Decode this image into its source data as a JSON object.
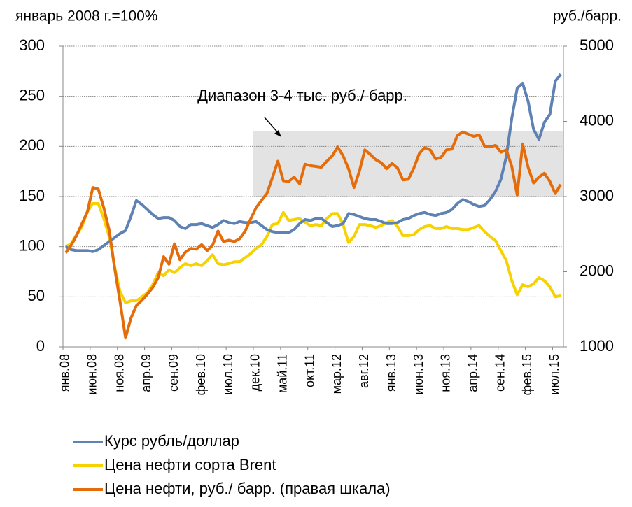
{
  "chart_data": {
    "type": "line",
    "y_label": "январь 2008 г.=100%",
    "y2_label": "руб./барр.",
    "annotation": "Диапазон 3-4 тыс. руб./ барр.",
    "band": {
      "from": "дек.10",
      "y2": [
        3000,
        3870
      ],
      "color": "#e3e3e3"
    },
    "categories": [
      "янв.08",
      null,
      null,
      null,
      null,
      "июн.08",
      null,
      null,
      null,
      null,
      "ноя.08",
      null,
      null,
      null,
      null,
      "апр.09",
      null,
      null,
      null,
      null,
      "сен.09",
      null,
      null,
      null,
      null,
      "фев.10",
      null,
      null,
      null,
      null,
      "июл.10",
      null,
      null,
      null,
      null,
      "дек.10",
      null,
      null,
      null,
      null,
      "май.11",
      null,
      null,
      null,
      null,
      "окт.11",
      null,
      null,
      null,
      null,
      "мар.12",
      null,
      null,
      null,
      null,
      "авг.12",
      null,
      null,
      null,
      null,
      "янв.13",
      null,
      null,
      null,
      null,
      "июн.13",
      null,
      null,
      null,
      null,
      "ноя.13",
      null,
      null,
      null,
      null,
      "апр.14",
      null,
      null,
      null,
      null,
      "сен.14",
      null,
      null,
      null,
      null,
      "фев.15",
      null,
      null,
      null,
      null,
      "июл.15",
      null
    ],
    "series": [
      {
        "name": "Курс рубль/доллар",
        "color": "#5f82b4",
        "values": [
          100,
          97,
          96,
          96,
          96,
          95,
          97,
          101,
          105,
          109,
          113,
          116,
          130,
          146,
          142,
          137,
          132,
          128,
          129,
          129,
          126,
          120,
          118,
          122,
          122,
          123,
          121,
          119,
          122,
          126,
          124,
          123,
          125,
          124,
          124,
          125,
          121,
          117,
          115,
          114,
          114,
          114,
          117,
          123,
          127,
          126,
          128,
          128,
          124,
          120,
          121,
          123,
          133,
          132,
          130,
          128,
          127,
          127,
          125,
          123,
          123,
          124,
          127,
          128,
          131,
          133,
          134,
          132,
          131,
          133,
          134,
          137,
          143,
          147,
          145,
          142,
          140,
          141,
          147,
          155,
          167,
          190,
          228,
          258,
          263,
          245,
          217,
          207,
          224,
          232,
          265,
          272
        ]
      },
      {
        "name": "Цена нефти сорта Brent",
        "color": "#f5d200",
        "values": [
          100,
          103,
          112,
          120,
          135,
          143,
          143,
          128,
          110,
          80,
          55,
          44,
          46,
          46,
          50,
          54,
          62,
          74,
          71,
          77,
          74,
          79,
          83,
          81,
          83,
          81,
          86,
          92,
          83,
          82,
          83,
          85,
          85,
          89,
          93,
          98,
          102,
          110,
          122,
          123,
          134,
          126,
          127,
          128,
          124,
          121,
          122,
          121,
          128,
          133,
          133,
          122,
          104,
          110,
          122,
          122,
          121,
          119,
          121,
          124,
          126,
          120,
          111,
          111,
          112,
          117,
          120,
          121,
          118,
          118,
          120,
          118,
          118,
          117,
          117,
          119,
          121,
          115,
          110,
          106,
          96,
          86,
          66,
          52,
          62,
          60,
          63,
          69,
          66,
          60,
          50,
          51
        ]
      },
      {
        "name": "Цена нефти, руб./ барр. (правая шкала)",
        "color": "#e46c0a",
        "axis": "y2",
        "values": [
          2250,
          2350,
          2480,
          2640,
          2800,
          3120,
          3100,
          2850,
          2550,
          2050,
          1600,
          1120,
          1380,
          1550,
          1620,
          1700,
          1790,
          1920,
          2200,
          2100,
          2370,
          2160,
          2260,
          2310,
          2300,
          2360,
          2280,
          2350,
          2540,
          2400,
          2420,
          2400,
          2440,
          2540,
          2700,
          2850,
          2950,
          3040,
          3250,
          3470,
          3210,
          3200,
          3260,
          3170,
          3430,
          3410,
          3400,
          3390,
          3470,
          3540,
          3660,
          3540,
          3370,
          3120,
          3340,
          3620,
          3560,
          3490,
          3450,
          3370,
          3440,
          3380,
          3220,
          3230,
          3380,
          3570,
          3650,
          3620,
          3500,
          3520,
          3620,
          3630,
          3810,
          3860,
          3830,
          3800,
          3820,
          3670,
          3660,
          3680,
          3590,
          3620,
          3400,
          3020,
          3700,
          3390,
          3180,
          3260,
          3310,
          3200,
          3040,
          3160
        ]
      }
    ],
    "ylim": [
      0,
      300
    ],
    "yticks": [
      0,
      50,
      100,
      150,
      200,
      250,
      300
    ],
    "y2lim": [
      1000,
      5000
    ],
    "y2ticks": [
      1000,
      2000,
      3000,
      4000,
      5000
    ],
    "grid": true
  }
}
